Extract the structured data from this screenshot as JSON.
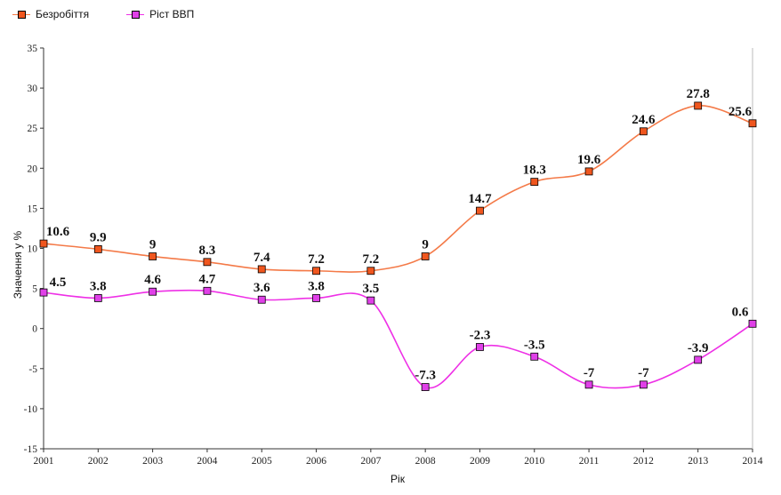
{
  "chart_data": {
    "type": "line",
    "x": [
      2001,
      2002,
      2003,
      2004,
      2005,
      2006,
      2007,
      2008,
      2009,
      2010,
      2011,
      2012,
      2013,
      2014
    ],
    "xlabel": "Рік",
    "ylabel": "Значення у %",
    "ylim": [
      -15,
      35
    ],
    "yticks": [
      -15,
      -10,
      -5,
      0,
      5,
      10,
      15,
      20,
      25,
      30,
      35
    ],
    "grid": false,
    "legend_position": "top-left",
    "series": [
      {
        "name": "Безробіття",
        "color": "#f47a48",
        "marker_color": "#f0561e",
        "values": [
          10.6,
          9.9,
          9,
          8.3,
          7.4,
          7.2,
          7.2,
          9,
          14.7,
          18.3,
          19.6,
          24.6,
          27.8,
          25.6
        ],
        "labels": [
          "10.6",
          "9.9",
          "9",
          "8.3",
          "7.4",
          "7.2",
          "7.2",
          "9",
          "14.7",
          "18.3",
          "19.6",
          "24.6",
          "27.8",
          "25.6"
        ]
      },
      {
        "name": "Ріст ВВП",
        "color": "#ee30e6",
        "marker_color": "#e040e8",
        "values": [
          4.5,
          3.8,
          4.6,
          4.7,
          3.6,
          3.8,
          3.5,
          -7.3,
          -2.3,
          -3.5,
          -7,
          -7,
          -3.9,
          0.6
        ],
        "labels": [
          "4.5",
          "3.8",
          "4.6",
          "4.7",
          "3.6",
          "3.8",
          "3.5",
          "-7.3",
          "-2.3",
          "-3.5",
          "-7",
          "-7",
          "-3.9",
          "0.6"
        ]
      }
    ]
  }
}
